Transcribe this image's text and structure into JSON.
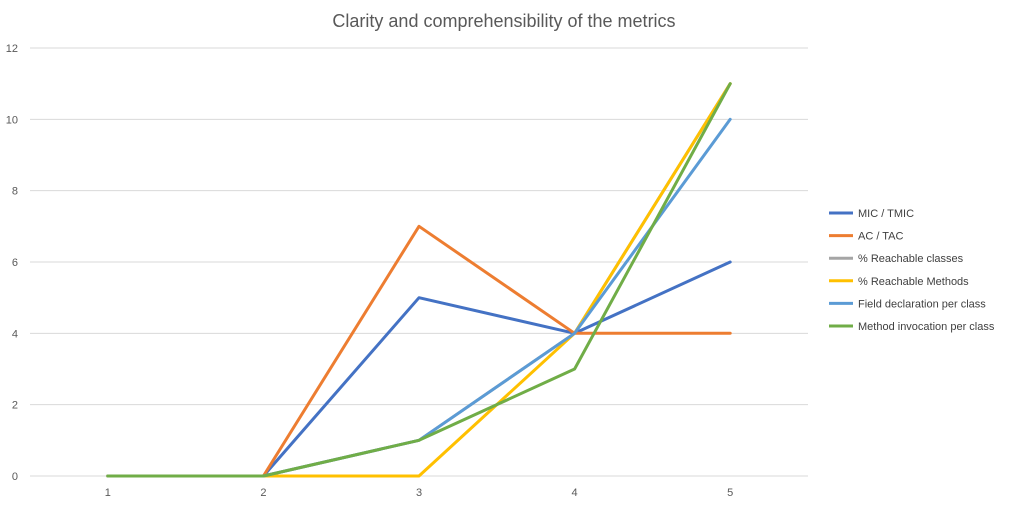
{
  "chart_data": {
    "type": "line",
    "title": "Clarity and comprehensibility of the metrics",
    "xlabel": "",
    "ylabel": "",
    "categories": [
      "1",
      "2",
      "3",
      "4",
      "5"
    ],
    "ylim": [
      0,
      12
    ],
    "yticks": [
      "0",
      "2",
      "4",
      "6",
      "8",
      "10",
      "12"
    ],
    "grid": true,
    "legend": "right",
    "series": [
      {
        "name": "MIC / TMIC",
        "color": "#4472c4",
        "values": [
          0,
          0,
          5,
          4,
          6
        ]
      },
      {
        "name": "AC / TAC",
        "color": "#ed7d31",
        "values": [
          0,
          0,
          7,
          4,
          4
        ]
      },
      {
        "name": "% Reachable classes",
        "color": "#a5a5a5",
        "values": [
          0,
          0,
          1,
          4,
          11
        ]
      },
      {
        "name": "% Reachable Methods",
        "color": "#ffc000",
        "values": [
          0,
          0,
          0,
          4,
          11
        ]
      },
      {
        "name": "Field declaration per class",
        "color": "#5b9bd5",
        "values": [
          0,
          0,
          1,
          4,
          10
        ]
      },
      {
        "name": "Method invocation per class",
        "color": "#70ad47",
        "values": [
          0,
          0,
          1,
          3,
          11
        ]
      }
    ]
  }
}
